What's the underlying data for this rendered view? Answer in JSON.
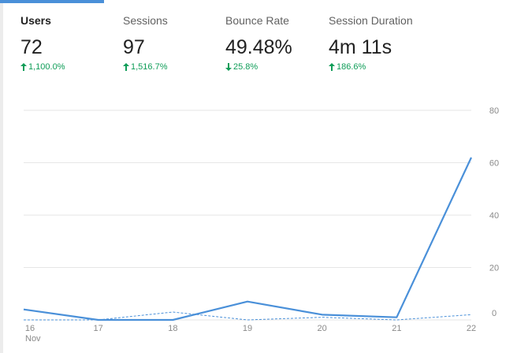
{
  "metrics": [
    {
      "label": "Users",
      "value": "72",
      "delta": "1,100.0%",
      "direction": "up",
      "active": true
    },
    {
      "label": "Sessions",
      "value": "97",
      "delta": "1,516.7%",
      "direction": "up",
      "active": false
    },
    {
      "label": "Bounce Rate",
      "value": "49.48%",
      "delta": "25.8%",
      "direction": "down",
      "active": false
    },
    {
      "label": "Session Duration",
      "value": "4m 11s",
      "delta": "186.6%",
      "direction": "up",
      "active": false
    }
  ],
  "colors": {
    "accent": "#4a90d9",
    "delta_positive": "#0f9d58",
    "grid": "#e6e6e6",
    "tick": "#8a8a8a"
  },
  "chart_data": {
    "type": "line",
    "categories": [
      "16",
      "17",
      "18",
      "19",
      "20",
      "21",
      "22"
    ],
    "x_sublabel": "Nov",
    "ylim": [
      0,
      80
    ],
    "yticks": [
      "80",
      "60",
      "40",
      "20",
      "0"
    ],
    "series": [
      {
        "values": [
          4,
          0,
          0,
          7,
          2,
          1,
          62
        ],
        "style": "solid"
      },
      {
        "values": [
          0,
          0,
          3,
          0,
          1,
          0,
          2
        ],
        "style": "dashed"
      }
    ],
    "grid": true,
    "y_axis_side": "right"
  }
}
